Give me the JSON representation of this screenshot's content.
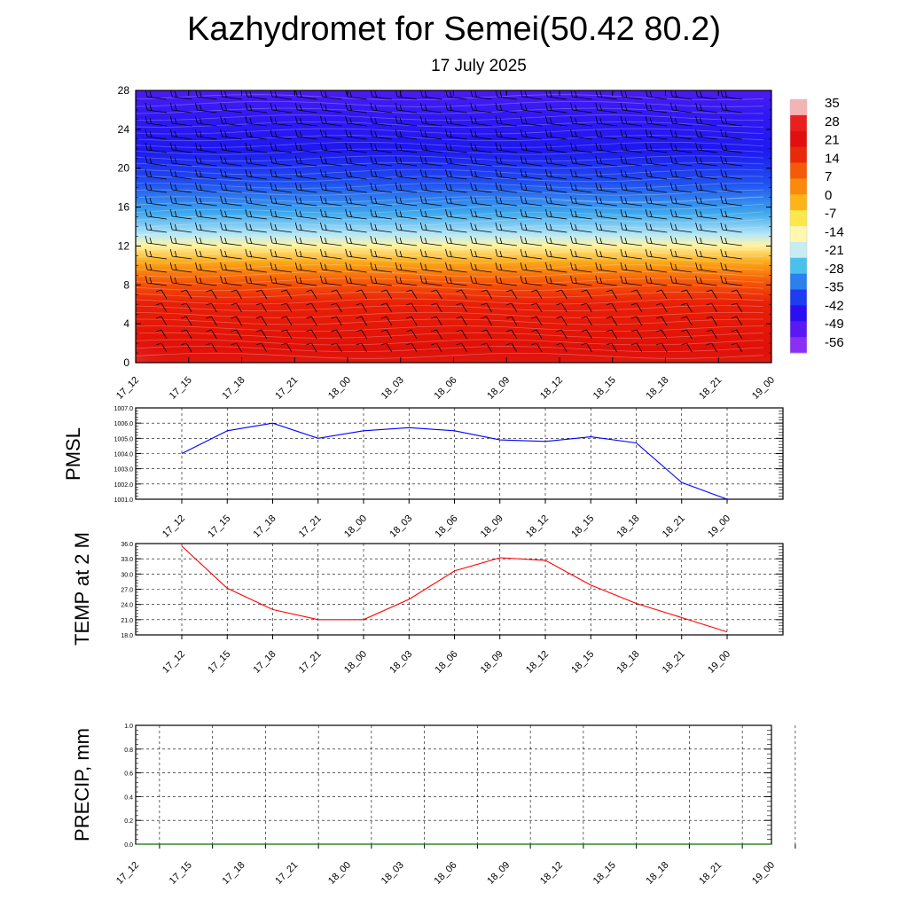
{
  "title": "Kazhydromet for Semei(50.42 80.2)",
  "subtitle": "17 July 2025",
  "time_labels": [
    "17_12",
    "17_15",
    "17_18",
    "17_21",
    "18_00",
    "18_03",
    "18_06",
    "18_09",
    "18_12",
    "18_15",
    "18_18",
    "18_21",
    "19_00"
  ],
  "chart_data": [
    {
      "type": "heatmap",
      "name": "cross-section",
      "x": [
        "17_12",
        "17_15",
        "17_18",
        "17_21",
        "18_00",
        "18_03",
        "18_06",
        "18_09",
        "18_12",
        "18_15",
        "18_18",
        "18_21",
        "19_00"
      ],
      "yticks": [
        "0",
        "4",
        "8",
        "12",
        "16",
        "20",
        "24",
        "28"
      ],
      "ylim": [
        0,
        28
      ],
      "colorbar_labels": [
        "35",
        "28",
        "21",
        "14",
        "7",
        "0",
        "-7",
        "-14",
        "-21",
        "-28",
        "-35",
        "-42",
        "-49",
        "-56"
      ],
      "colorbar_colors": [
        "#f4b4b4",
        "#ea2020",
        "#e01010",
        "#e82a0a",
        "#f45a08",
        "#fb8a0c",
        "#fcb418",
        "#fde74a",
        "#fff7b0",
        "#c8ecf4",
        "#4cc0ec",
        "#2a80ec",
        "#1e3cf0",
        "#2a10f0",
        "#5a18f4",
        "#8a30f4"
      ],
      "has_wind_barbs": true
    },
    {
      "type": "line",
      "ylabel": "PMSL",
      "x": [
        "17_12",
        "17_15",
        "17_18",
        "17_21",
        "18_00",
        "18_03",
        "18_06",
        "18_09",
        "18_12",
        "18_15",
        "18_18",
        "18_21",
        "19_00"
      ],
      "values": [
        1004.0,
        1005.5,
        1006.0,
        1005.0,
        1005.5,
        1005.7,
        1005.5,
        1004.9,
        1004.8,
        1005.1,
        1004.7,
        1002.1,
        1001.0
      ],
      "yticks": [
        "1001.0",
        "1002.0",
        "1003.0",
        "1004.0",
        "1005.0",
        "1006.0",
        "1007.0"
      ],
      "ylim": [
        1001.0,
        1007.0
      ],
      "color": "#0000ff",
      "grid": true
    },
    {
      "type": "line",
      "ylabel": "TEMP at 2 M",
      "x": [
        "17_12",
        "17_15",
        "17_18",
        "17_21",
        "18_00",
        "18_03",
        "18_06",
        "18_09",
        "18_12",
        "18_15",
        "18_18",
        "18_21",
        "19_00"
      ],
      "values": [
        35.5,
        27.2,
        23.0,
        21.0,
        21.0,
        25.0,
        30.6,
        33.2,
        32.7,
        27.8,
        24.2,
        21.4,
        18.6
      ],
      "yticks": [
        "18.0",
        "21.0",
        "24.0",
        "27.0",
        "30.0",
        "33.0",
        "36.0"
      ],
      "ylim": [
        18.0,
        36.0
      ],
      "color": "#ff0000",
      "grid": true
    },
    {
      "type": "line",
      "ylabel": "PRECIP, mm",
      "x": [
        "17_12",
        "17_15",
        "17_18",
        "17_21",
        "18_00",
        "18_03",
        "18_06",
        "18_09",
        "18_12",
        "18_15",
        "18_18",
        "18_21",
        "19_00"
      ],
      "values": [
        0,
        0,
        0,
        0,
        0,
        0,
        0,
        0,
        0,
        0,
        0,
        0,
        0
      ],
      "yticks": [
        "0.0",
        "0.2",
        "0.4",
        "0.6",
        "0.8",
        "1.0"
      ],
      "ylim": [
        0.0,
        1.0
      ],
      "color": "#008000",
      "grid": true
    }
  ]
}
